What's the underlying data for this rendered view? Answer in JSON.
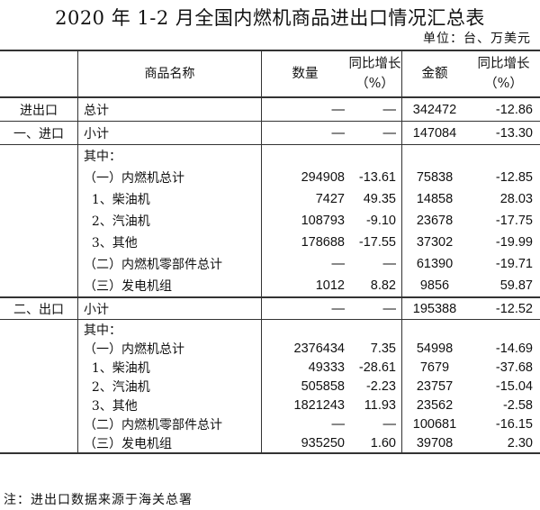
{
  "title": "2020 年 1-2 月全国内燃机商品进出口情况汇总表",
  "unit": "单位：台、万美元",
  "headers": {
    "col1": "",
    "name": "商品名称",
    "qty": "数量",
    "qty_yoy": "同比增长",
    "qty_yoy_unit": "（%）",
    "amount": "金额",
    "amount_yoy": "同比增长",
    "amount_yoy_unit": "（%）"
  },
  "rows": [
    {
      "group": "进出口",
      "name": "总计",
      "qty": "—",
      "qty_yoy": "—",
      "amount": "342472",
      "amount_yoy": "-12.86"
    },
    {
      "group": "一、进口",
      "name": "小计",
      "qty": "—",
      "qty_yoy": "—",
      "amount": "147084",
      "amount_yoy": "-13.30"
    },
    {
      "group": "",
      "name": "其中：",
      "qty": "",
      "qty_yoy": "",
      "amount": "",
      "amount_yoy": ""
    },
    {
      "group": "",
      "name": "（一）内燃机总计",
      "qty": "294908",
      "qty_yoy": "-13.61",
      "amount": "75838",
      "amount_yoy": "-12.85"
    },
    {
      "group": "",
      "name": "  1、柴油机",
      "qty": "7427",
      "qty_yoy": "49.35",
      "amount": "14858",
      "amount_yoy": "28.03"
    },
    {
      "group": "",
      "name": "  2、汽油机",
      "qty": "108793",
      "qty_yoy": "-9.10",
      "amount": "23678",
      "amount_yoy": "-17.75"
    },
    {
      "group": "",
      "name": "  3、其他",
      "qty": "178688",
      "qty_yoy": "-17.55",
      "amount": "37302",
      "amount_yoy": "-19.99"
    },
    {
      "group": "",
      "name": "（二）内燃机零部件总计",
      "qty": "—",
      "qty_yoy": "—",
      "amount": "61390",
      "amount_yoy": "-19.71"
    },
    {
      "group": "",
      "name": "（三）发电机组",
      "qty": "1012",
      "qty_yoy": "8.82",
      "amount": "9856",
      "amount_yoy": "59.87"
    },
    {
      "group": "二、出口",
      "name": "小计",
      "qty": "—",
      "qty_yoy": "—",
      "amount": "195388",
      "amount_yoy": "-12.52"
    },
    {
      "group": "",
      "name": "其中：",
      "qty": "",
      "qty_yoy": "",
      "amount": "",
      "amount_yoy": ""
    },
    {
      "group": "",
      "name": "（一）内燃机总计",
      "qty": "2376434",
      "qty_yoy": "7.35",
      "amount": "54998",
      "amount_yoy": "-14.69"
    },
    {
      "group": "",
      "name": "  1、柴油机",
      "qty": "49333",
      "qty_yoy": "-28.61",
      "amount": "7679",
      "amount_yoy": "-37.68"
    },
    {
      "group": "",
      "name": "  2、汽油机",
      "qty": "505858",
      "qty_yoy": "-2.23",
      "amount": "23757",
      "amount_yoy": "-15.04"
    },
    {
      "group": "",
      "name": "  3、其他",
      "qty": "1821243",
      "qty_yoy": "11.93",
      "amount": "23562",
      "amount_yoy": "-2.58"
    },
    {
      "group": "",
      "name": "（二）内燃机零部件总计",
      "qty": "—",
      "qty_yoy": "—",
      "amount": "100681",
      "amount_yoy": "-16.15"
    },
    {
      "group": "",
      "name": "（三）发电机组",
      "qty": "935250",
      "qty_yoy": "1.60",
      "amount": "39708",
      "amount_yoy": "2.30"
    }
  ],
  "note": "注：进出口数据来源于海关总署"
}
